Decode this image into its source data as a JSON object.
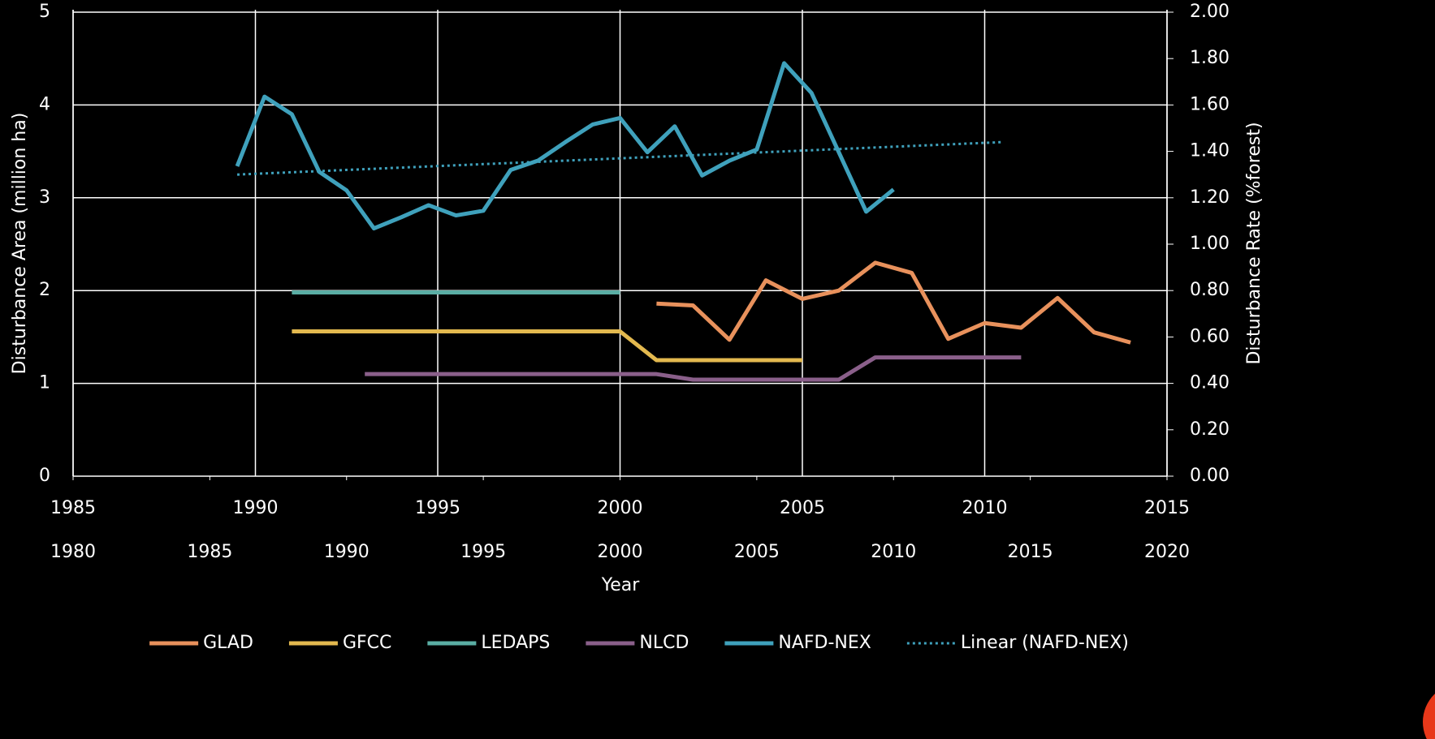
{
  "chart_data": {
    "type": "line",
    "xlabel": "Year",
    "ylabel": "Disturbance Area (million ha)",
    "y2label": "Disturbance Rate (%forest)",
    "xlim": [
      1985,
      2015
    ],
    "xticks": [
      1985,
      1990,
      1995,
      2000,
      2005,
      2010,
      2015
    ],
    "x2lim": [
      1980,
      2020
    ],
    "x2ticks": [
      1980,
      1985,
      1990,
      1995,
      2000,
      2005,
      2010,
      2015,
      2020
    ],
    "ylim": [
      0,
      5
    ],
    "yticks": [
      0,
      1,
      2,
      3,
      4,
      5
    ],
    "y2lim": [
      0,
      2
    ],
    "y2ticks": [
      {
        "value": 0,
        "label": "0.00"
      },
      {
        "value": 0.2,
        "label": "0.20"
      },
      {
        "value": 0.4,
        "label": "0.40"
      },
      {
        "value": 0.6,
        "label": "0.60"
      },
      {
        "value": 0.8,
        "label": "0.80"
      },
      {
        "value": 1,
        "label": "1.00"
      },
      {
        "value": 1.2,
        "label": "1.20"
      },
      {
        "value": 1.4,
        "label": "1.40"
      },
      {
        "value": 1.6,
        "label": "1.60"
      },
      {
        "value": 1.8,
        "label": "1.80"
      },
      {
        "value": 2,
        "label": "2.00"
      }
    ],
    "grid": true,
    "legend": "bottom",
    "series": [
      {
        "name": "GLAD",
        "color": "#e8915c",
        "x": [
          2001,
          2002,
          2003,
          2004,
          2005,
          2006,
          2007,
          2008,
          2009,
          2010,
          2011,
          2012,
          2013,
          2014
        ],
        "values": [
          1.86,
          1.84,
          1.47,
          2.11,
          1.91,
          2.0,
          2.3,
          2.19,
          1.48,
          1.65,
          1.6,
          1.92,
          1.55,
          1.44
        ]
      },
      {
        "name": "GFCC",
        "color": "#e3b94f",
        "x": [
          1991,
          2000,
          2001,
          2005
        ],
        "values": [
          1.56,
          1.56,
          1.25,
          1.25
        ]
      },
      {
        "name": "LEDAPS",
        "color": "#5aaea4",
        "x": [
          1991,
          2000
        ],
        "values": [
          1.98,
          1.98
        ]
      },
      {
        "name": "NLCD",
        "color": "#8a5f8a",
        "x": [
          1993,
          2001,
          2002,
          2006,
          2007,
          2011
        ],
        "values": [
          1.1,
          1.1,
          1.04,
          1.04,
          1.28,
          1.28
        ]
      },
      {
        "name": "NAFD-NEX",
        "color": "#3fa1bc",
        "xaxis": "x2",
        "x": [
          1986,
          1987,
          1988,
          1989,
          1990,
          1991,
          1992,
          1993,
          1994,
          1995,
          1996,
          1997,
          1998,
          1999,
          2000,
          2001,
          2002,
          2003,
          2004,
          2005,
          2006,
          2007,
          2008,
          2009,
          2010
        ],
        "values": [
          3.34,
          4.09,
          3.9,
          3.28,
          3.08,
          2.67,
          2.79,
          2.92,
          2.81,
          2.86,
          3.3,
          3.4,
          3.6,
          3.79,
          3.86,
          3.49,
          3.77,
          3.24,
          3.4,
          3.52,
          4.45,
          4.13,
          3.49,
          2.85,
          3.09
        ]
      },
      {
        "name": "Linear (NAFD-NEX)",
        "color": "#3fa1bc",
        "dotted": true,
        "xaxis": "x2",
        "x": [
          1986,
          2014
        ],
        "values": [
          3.25,
          3.6
        ]
      }
    ]
  }
}
